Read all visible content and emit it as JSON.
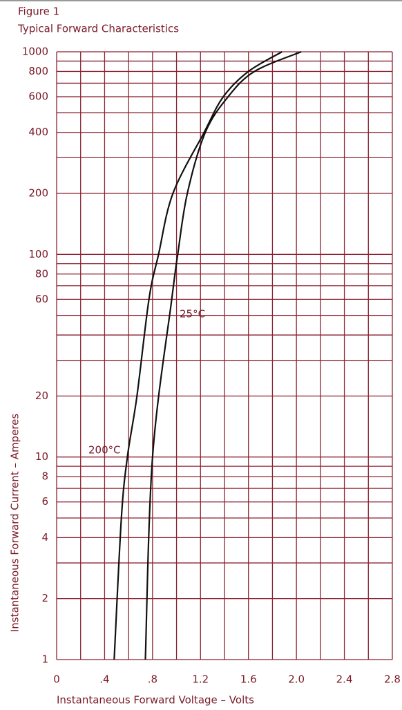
{
  "chart_data": {
    "type": "line",
    "title": "Figure 1",
    "subtitle": "Typical Forward Characteristics",
    "x_label": "Instantaneous Forward Voltage  –  Volts",
    "y_label": "Instantaneous Forward Current  –  Amperes",
    "log_y": true,
    "grid": true,
    "grid_color": "#8b2232",
    "xlim": [
      0,
      2.8
    ],
    "ylim": [
      1,
      1000
    ],
    "xticks": [
      0,
      {
        "value": 0.4,
        "label": ".4"
      },
      {
        "value": 0.8,
        "label": ".8"
      },
      1.2,
      1.6,
      {
        "value": 2,
        "label": "2.0"
      },
      2.4,
      2.8
    ],
    "xminor_ticks": [
      0.2,
      0.6,
      1.0,
      1.4,
      1.8,
      2.2,
      2.6
    ],
    "yticks": [
      1,
      2,
      4,
      6,
      8,
      10,
      20,
      60,
      80,
      100,
      200,
      400,
      600,
      800,
      1000
    ],
    "yminor_ticks": [
      3,
      5,
      7,
      9,
      30,
      40,
      50,
      70,
      90,
      300,
      500,
      700,
      900
    ],
    "series": [
      {
        "name": "25°C",
        "color": "#111111",
        "x": [
          0.74,
          0.8,
          0.96,
          1.01,
          1.09,
          1.24,
          1.43,
          1.65,
          2.04
        ],
        "values": [
          1,
          10,
          60,
          100,
          200,
          400,
          600,
          800,
          1000
        ]
      },
      {
        "name": "200°C",
        "color": "#111111",
        "x": [
          0.48,
          0.54,
          0.59,
          0.67,
          0.77,
          0.85,
          0.97,
          1.23,
          1.39,
          1.6,
          1.88
        ],
        "values": [
          1,
          5,
          10,
          20,
          60,
          100,
          200,
          400,
          600,
          800,
          1000
        ]
      }
    ]
  }
}
